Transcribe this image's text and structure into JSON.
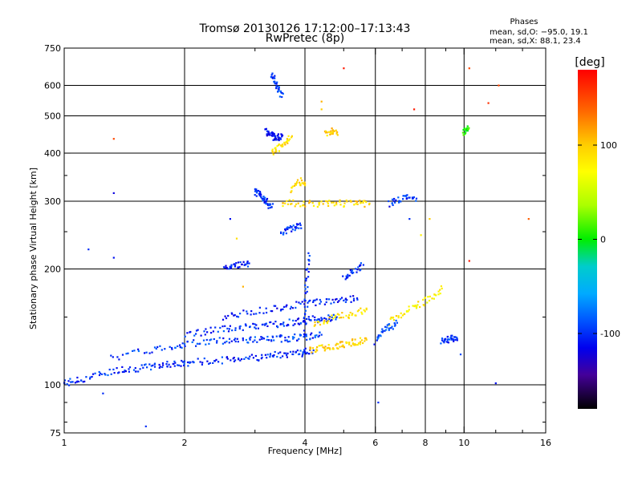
{
  "chart_data": {
    "type": "scatter",
    "title": "Tromsø 20130126 17:12:00–17:13:43",
    "subtitle": "RwPretec (8p)",
    "stats_header": "Phases",
    "stats_o": "mean, sd,O: −95.0, 19.1",
    "stats_x": "mean, sd,X:  88.1, 23.4",
    "xlabel": "Frequency [MHz]",
    "ylabel": "Stationary phase Virtual Height [km]",
    "x_scale": "log",
    "y_scale": "log",
    "xlim": [
      1,
      16
    ],
    "ylim": [
      75,
      750
    ],
    "x_ticks": [
      1,
      2,
      4,
      6,
      8,
      10,
      16
    ],
    "x_tick_labels": [
      "1",
      "2",
      "4",
      "6",
      "8",
      "10",
      "16"
    ],
    "x_minor_ticks": [
      3,
      5,
      7,
      9,
      12,
      14
    ],
    "y_ticks": [
      75,
      100,
      200,
      300,
      400,
      500,
      600,
      750
    ],
    "y_tick_labels": [
      "75",
      "100",
      "200",
      "300",
      "400",
      "500",
      "600",
      "750"
    ],
    "y_minor_ticks": [
      80,
      90,
      150,
      250,
      350
    ],
    "grid_x": [
      2,
      4,
      6,
      8,
      10
    ],
    "grid_y": [
      100,
      200,
      300,
      400,
      500,
      600
    ],
    "grid": true,
    "colorbar": {
      "label": "[deg]",
      "range": [
        -180,
        180
      ],
      "ticks": [
        100,
        0,
        -100
      ],
      "tick_labels": [
        "100",
        "0",
        "-100"
      ]
    },
    "traces": [
      {
        "name": "",
        "x": [
          1.0,
          1.05,
          1.1,
          1.2,
          1.3,
          1.4,
          1.5,
          1.6,
          1.7,
          1.8,
          1.9,
          2.0,
          2.1,
          2.3,
          2.5,
          2.7,
          2.9,
          3.1,
          3.3,
          3.5,
          3.7,
          3.9,
          4.0,
          4.2
        ],
        "y": [
          101,
          102,
          103,
          106,
          108,
          110,
          110,
          111,
          112,
          113,
          114,
          113,
          115,
          115,
          116,
          117,
          118,
          118,
          119,
          120,
          121,
          121,
          122,
          123
        ],
        "phase": -100
      },
      {
        "name": "",
        "x": [
          1.3,
          1.5,
          1.7,
          1.9,
          2.0,
          2.2,
          2.4,
          2.6,
          2.8,
          3.0,
          3.2,
          3.4,
          3.6,
          3.8,
          4.0,
          4.2,
          4.4
        ],
        "y": [
          117,
          121,
          124,
          126,
          128,
          129,
          130,
          131,
          131,
          131,
          131,
          132,
          132,
          133,
          133,
          134,
          135
        ],
        "phase": -95
      },
      {
        "name": "",
        "x": [
          2.0,
          2.2,
          2.4,
          2.6,
          2.8,
          3.0,
          3.2,
          3.4,
          3.6,
          3.8,
          4.0,
          4.2,
          4.4,
          4.6,
          4.8
        ],
        "y": [
          135,
          137,
          139,
          140,
          141,
          142,
          143,
          144,
          145,
          146,
          147,
          148,
          148,
          149,
          150
        ],
        "phase": -100
      },
      {
        "name": "",
        "x": [
          2.5,
          2.7,
          3.0,
          3.3,
          3.6,
          3.9,
          4.2,
          4.5,
          4.8,
          5.1,
          5.4
        ],
        "y": [
          150,
          152,
          155,
          158,
          160,
          162,
          164,
          165,
          166,
          167,
          168
        ],
        "phase": -105
      },
      {
        "name": "",
        "x": [
          4.1,
          4.3,
          4.5,
          4.7,
          4.9,
          5.1,
          5.3,
          5.5,
          5.7
        ],
        "y": [
          123,
          124,
          125,
          126,
          127,
          128,
          129,
          130,
          131
        ],
        "phase": 95
      },
      {
        "name": "",
        "x": [
          4.2,
          4.5,
          4.8,
          5.1,
          5.4,
          5.7
        ],
        "y": [
          145,
          147,
          150,
          152,
          155,
          157
        ],
        "phase": 90
      },
      {
        "name": "",
        "x": [
          6.5,
          6.8,
          7.2,
          7.6,
          8.0,
          8.4,
          8.8
        ],
        "y": [
          145,
          150,
          155,
          160,
          165,
          170,
          178
        ],
        "phase": 80
      },
      {
        "name": "",
        "x": [
          6.0,
          6.2,
          6.4,
          6.6,
          6.8
        ],
        "y": [
          130,
          135,
          140,
          142,
          145
        ],
        "phase": -90
      },
      {
        "name": "",
        "x": [
          8.8,
          9.0,
          9.2,
          9.4,
          9.6
        ],
        "y": [
          130,
          131,
          131,
          132,
          132
        ],
        "phase": -100
      },
      {
        "name": "",
        "x": [
          2.5,
          2.6,
          2.7,
          2.8,
          2.9
        ],
        "y": [
          200,
          202,
          204,
          205,
          207
        ],
        "phase": -105
      },
      {
        "name": "",
        "x": [
          3.0,
          3.05,
          3.1,
          3.15,
          3.2,
          3.25,
          3.3
        ],
        "y": [
          320,
          315,
          310,
          305,
          300,
          295,
          290
        ],
        "phase": -100
      },
      {
        "name": "",
        "x": [
          3.2,
          3.25,
          3.3,
          3.35,
          3.4,
          3.45,
          3.5
        ],
        "y": [
          460,
          450,
          445,
          440,
          440,
          440,
          442
        ],
        "phase": -110
      },
      {
        "name": "",
        "x": [
          3.3,
          3.35,
          3.4,
          3.45,
          3.5
        ],
        "y": [
          640,
          620,
          600,
          580,
          560
        ],
        "phase": -100
      },
      {
        "name": "",
        "x": [
          3.3,
          3.4,
          3.5,
          3.6,
          3.7
        ],
        "y": [
          400,
          410,
          420,
          430,
          440
        ],
        "phase": 90
      },
      {
        "name": "",
        "x": [
          3.5,
          3.7,
          4.0,
          4.3,
          4.6,
          4.9,
          5.2,
          5.5,
          5.8
        ],
        "y": [
          297,
          297,
          296,
          296,
          296,
          296,
          296,
          296,
          296
        ],
        "phase": 95
      },
      {
        "name": "",
        "x": [
          3.5,
          3.6,
          3.7,
          3.8,
          3.9
        ],
        "y": [
          250,
          252,
          255,
          258,
          260
        ],
        "phase": -100
      },
      {
        "name": "",
        "x": [
          4.0,
          4.02,
          4.04,
          4.06,
          4.08
        ],
        "y": [
          140,
          160,
          180,
          200,
          220
        ],
        "phase": -100
      },
      {
        "name": "",
        "x": [
          4.5,
          4.6,
          4.7,
          4.8
        ],
        "y": [
          450,
          455,
          460,
          450
        ],
        "phase": 95
      },
      {
        "name": "",
        "x": [
          3.7,
          3.8,
          3.9,
          4.0
        ],
        "y": [
          320,
          330,
          340,
          330
        ],
        "phase": 90
      },
      {
        "name": "",
        "x": [
          5.0,
          5.2,
          5.4,
          5.6
        ],
        "y": [
          190,
          195,
          200,
          205
        ],
        "phase": -100
      },
      {
        "name": "",
        "x": [
          6.5,
          6.7,
          7.0,
          7.3,
          7.6
        ],
        "y": [
          295,
          300,
          305,
          310,
          305
        ],
        "phase": -100
      },
      {
        "name": "",
        "x": [
          10.0,
          10.1,
          10.2
        ],
        "y": [
          450,
          460,
          470
        ],
        "phase": 0
      }
    ],
    "scatter_points": [
      {
        "x": 1.33,
        "y": 436,
        "phase": 150
      },
      {
        "x": 1.33,
        "y": 315,
        "phase": -120
      },
      {
        "x": 1.33,
        "y": 214,
        "phase": -110
      },
      {
        "x": 1.15,
        "y": 225,
        "phase": -100
      },
      {
        "x": 1.6,
        "y": 78,
        "phase": -100
      },
      {
        "x": 1.25,
        "y": 95,
        "phase": -100
      },
      {
        "x": 5.0,
        "y": 665,
        "phase": 170
      },
      {
        "x": 7.5,
        "y": 520,
        "phase": 170
      },
      {
        "x": 10.3,
        "y": 665,
        "phase": 150
      },
      {
        "x": 11.5,
        "y": 540,
        "phase": 160
      },
      {
        "x": 12.2,
        "y": 600,
        "phase": 150
      },
      {
        "x": 14.5,
        "y": 270,
        "phase": 140
      },
      {
        "x": 12.0,
        "y": 101,
        "phase": -110
      },
      {
        "x": 6.1,
        "y": 90,
        "phase": -100
      },
      {
        "x": 10.3,
        "y": 210,
        "phase": 170
      },
      {
        "x": 4.4,
        "y": 545,
        "phase": 110
      },
      {
        "x": 4.4,
        "y": 520,
        "phase": 100
      },
      {
        "x": 2.6,
        "y": 270,
        "phase": -110
      },
      {
        "x": 2.7,
        "y": 240,
        "phase": 90
      },
      {
        "x": 2.8,
        "y": 180,
        "phase": 110
      },
      {
        "x": 7.3,
        "y": 270,
        "phase": -100
      },
      {
        "x": 7.8,
        "y": 245,
        "phase": 80
      },
      {
        "x": 8.2,
        "y": 270,
        "phase": 100
      },
      {
        "x": 9.8,
        "y": 120,
        "phase": -90
      }
    ]
  }
}
